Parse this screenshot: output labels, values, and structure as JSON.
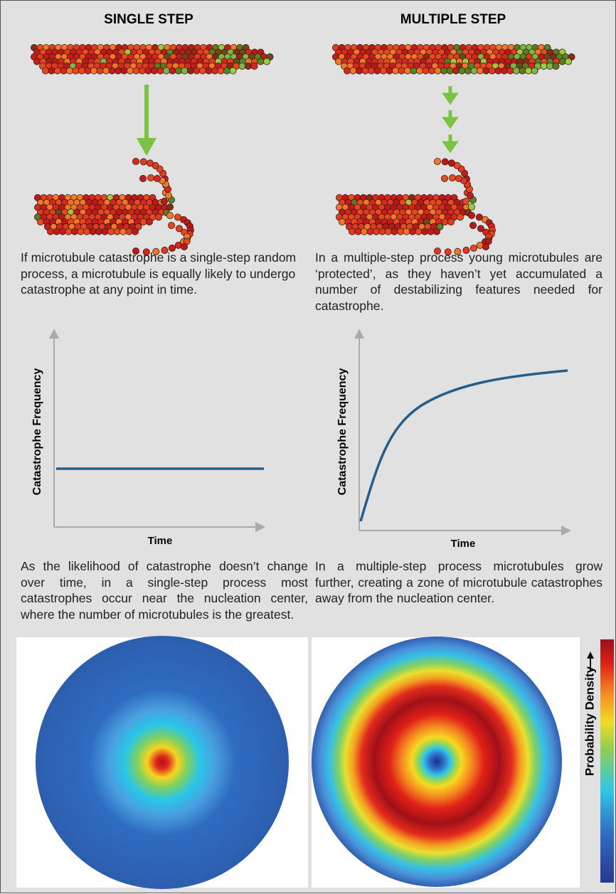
{
  "columns": [
    {
      "title": "SINGLE STEP",
      "description": "If microtubule catastrophe is a single-step random process, a microtubule is equally likely to undergo catastrophe at any point in time.",
      "graph": {
        "y_label": "Catastrophe Frequency",
        "x_label": "Time"
      },
      "outcome": "As the likelihood of catastrophe doesn’t change over time, in a single-step process most catastrophes occur near the nucleation center, where the number of microtubules is the greatest."
    },
    {
      "title": "MULTIPLE STEP",
      "description": "In a multiple-step process young microtubules are ‘protected’, as they haven’t yet accumulated a number of destabilizing features needed for catastrophe.",
      "graph": {
        "y_label": "Catastrophe Frequency",
        "x_label": "Time"
      },
      "outcome": "In a multiple-step process microtubules grow further, creating a zone of microtubule catastrophes away from the nucleation center."
    }
  ],
  "colorbar": {
    "label": "Probability Density"
  }
}
